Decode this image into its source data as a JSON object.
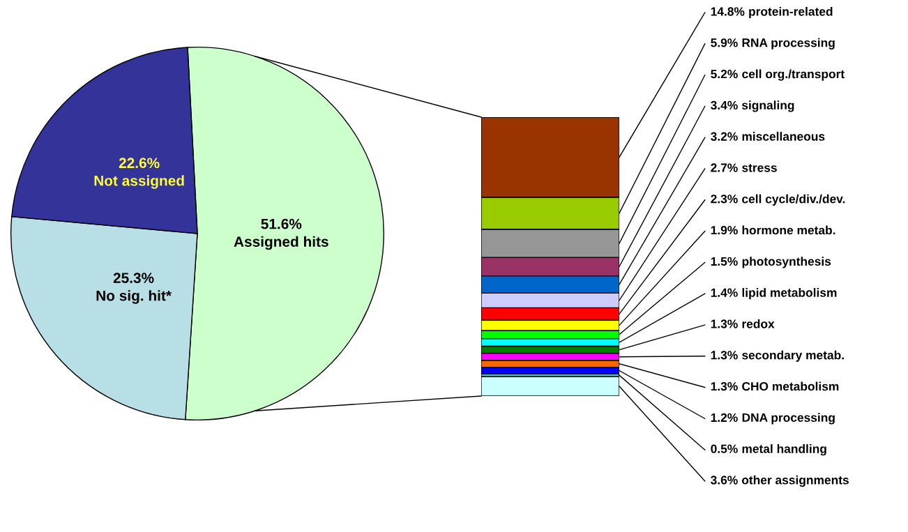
{
  "chart_data": [
    {
      "type": "pie",
      "categories": [
        "Assigned hits",
        "No sig. hit*",
        "Not assigned"
      ],
      "values": [
        51.6,
        25.3,
        22.6
      ],
      "value_labels": [
        "51.6%",
        "25.3%",
        "22.6%"
      ],
      "colors": [
        "#ccffcc",
        "#b9dfe6",
        "#333399"
      ]
    },
    {
      "type": "bar",
      "stacked": true,
      "categories": [
        null
      ],
      "series": [
        {
          "name": "other assignments",
          "color": "#ccffff",
          "values": [
            3.6
          ],
          "value_labels": [
            "3.6%"
          ]
        },
        {
          "name": "metal handling",
          "color": "#33cccc",
          "values": [
            0.5
          ],
          "value_labels": [
            "0.5%"
          ]
        },
        {
          "name": "DNA processing",
          "color": "#0000ff",
          "values": [
            1.2
          ],
          "value_labels": [
            "1.2%"
          ]
        },
        {
          "name": "CHO metabolism",
          "color": "#ff6600",
          "values": [
            1.3
          ],
          "value_labels": [
            "1.3%"
          ]
        },
        {
          "name": "secondary metab.",
          "color": "#ff00ff",
          "values": [
            1.3
          ],
          "value_labels": [
            "1.3%"
          ]
        },
        {
          "name": "redox",
          "color": "#008000",
          "values": [
            1.3
          ],
          "value_labels": [
            "1.3%"
          ]
        },
        {
          "name": "lipid metabolism",
          "color": "#00ffff",
          "values": [
            1.4
          ],
          "value_labels": [
            "1.4%"
          ]
        },
        {
          "name": "photosynthesis",
          "color": "#00ff00",
          "values": [
            1.5
          ],
          "value_labels": [
            "1.5%"
          ]
        },
        {
          "name": "hormone metab.",
          "color": "#ffff00",
          "values": [
            1.9
          ],
          "value_labels": [
            "1.9%"
          ]
        },
        {
          "name": "cell cycle/div./dev.",
          "color": "#ff0000",
          "values": [
            2.3
          ],
          "value_labels": [
            "2.3%"
          ]
        },
        {
          "name": "stress",
          "color": "#ccccff",
          "values": [
            2.7
          ],
          "value_labels": [
            "2.7%"
          ]
        },
        {
          "name": "miscellaneous",
          "color": "#0066cc",
          "values": [
            3.2
          ],
          "value_labels": [
            "3.2%"
          ]
        },
        {
          "name": "signaling",
          "color": "#993366",
          "values": [
            3.4
          ],
          "value_labels": [
            "3.4%"
          ]
        },
        {
          "name": "cell org./transport",
          "color": "#969696",
          "values": [
            5.2
          ],
          "value_labels": [
            "5.2%"
          ]
        },
        {
          "name": "RNA processing",
          "color": "#99cc00",
          "values": [
            5.9
          ],
          "value_labels": [
            "5.9%"
          ]
        },
        {
          "name": "protein-related",
          "color": "#993300",
          "values": [
            14.8
          ],
          "value_labels": [
            "14.8%"
          ]
        }
      ]
    }
  ]
}
